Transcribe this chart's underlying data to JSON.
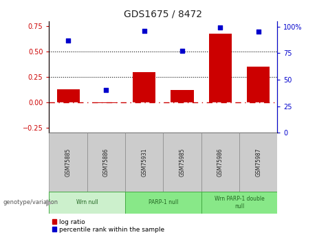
{
  "title": "GDS1675 / 8472",
  "samples": [
    "GSM75885",
    "GSM75886",
    "GSM75931",
    "GSM75985",
    "GSM75986",
    "GSM75987"
  ],
  "log_ratio": [
    0.13,
    -0.01,
    0.3,
    0.12,
    0.68,
    0.35
  ],
  "percentile_rank": [
    87,
    40,
    96,
    77,
    99,
    95
  ],
  "ylim_left": [
    -0.3,
    0.8
  ],
  "ylim_right": [
    0,
    105
  ],
  "yticks_left": [
    -0.25,
    0.0,
    0.25,
    0.5,
    0.75
  ],
  "yticks_right": [
    0,
    25,
    50,
    75,
    100
  ],
  "ytick_labels_right": [
    "0",
    "25",
    "50",
    "75",
    "100%"
  ],
  "bar_color": "#cc0000",
  "scatter_color": "#0000cc",
  "groups": [
    {
      "label": "Wrn null",
      "start": 0,
      "end": 2,
      "color": "#ccf0cc"
    },
    {
      "label": "PARP-1 null",
      "start": 2,
      "end": 4,
      "color": "#88e888"
    },
    {
      "label": "Wrn PARP-1 double\nnull",
      "start": 4,
      "end": 6,
      "color": "#88e888"
    }
  ],
  "xlabel_row_color": "#cccccc",
  "legend_log_ratio_color": "#cc0000",
  "legend_percentile_color": "#0000cc",
  "genotype_label": "genotype/variation",
  "background_color": "#ffffff",
  "plot_bg": "#ffffff"
}
